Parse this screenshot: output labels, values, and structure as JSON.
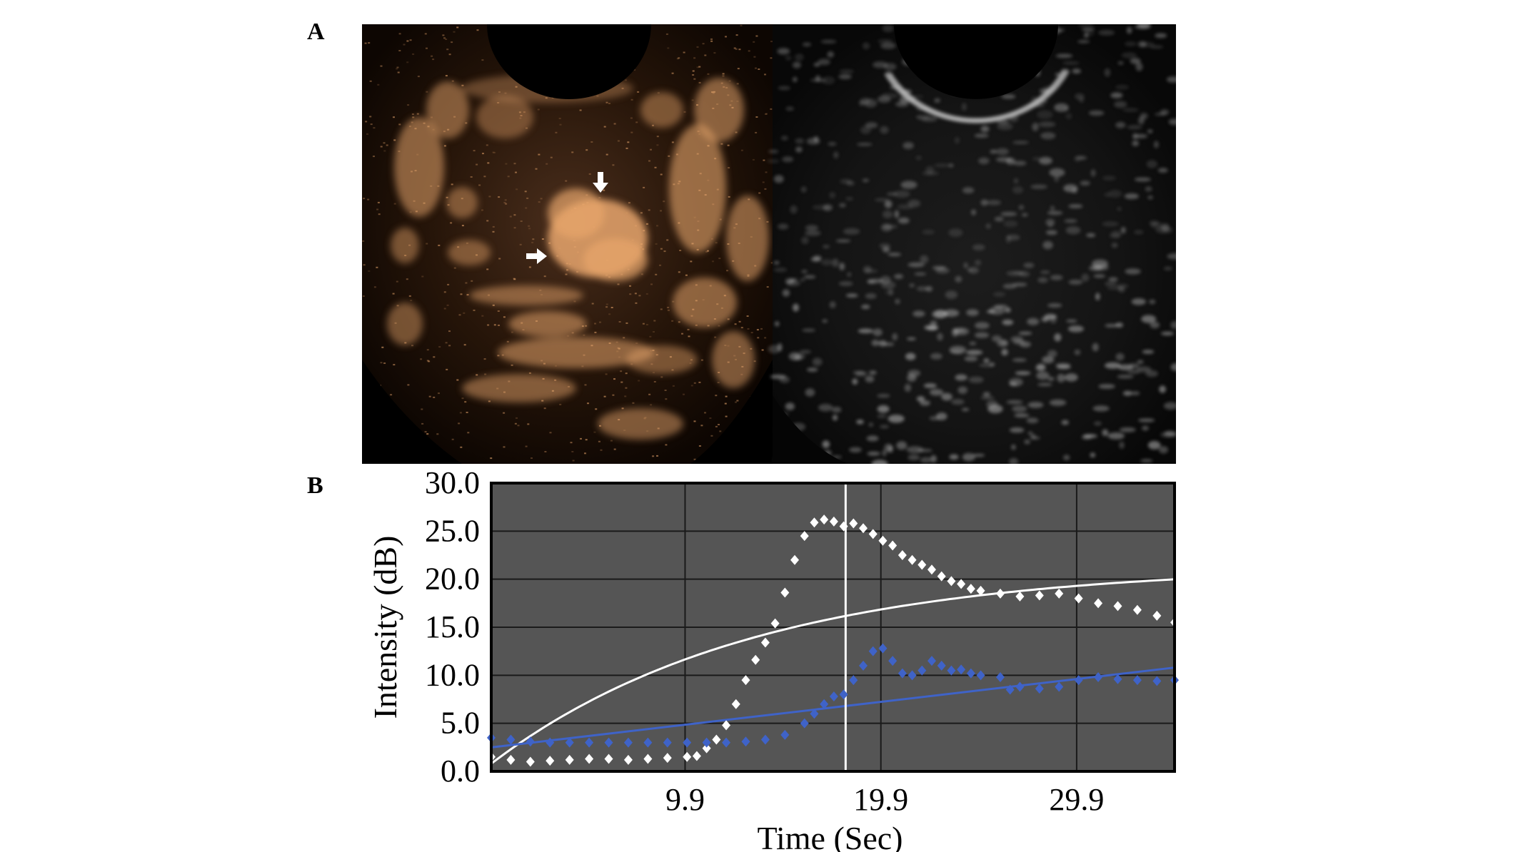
{
  "figure": {
    "panel_a_label": "A",
    "panel_b_label": "B"
  },
  "colors": {
    "plot_background": "#555555",
    "gridline": "#1a1a1a",
    "roi_series": "#ffffff",
    "reference_series": "#3f63c8",
    "marker_line": "#ffffff",
    "contrast_tint": "#e8a66c"
  },
  "ultrasound": {
    "left_panel": "contrast-enhanced mode (warm palette)",
    "right_panel": "B-mode (grayscale)",
    "arrows": [
      "down-arrow-icon",
      "right-arrow-icon"
    ]
  },
  "chart_data": {
    "type": "scatter",
    "xlabel": "Time (Sec)",
    "ylabel": "Intensity (dB)",
    "xlim": [
      0,
      34.9
    ],
    "ylim": [
      0,
      30
    ],
    "x_ticks": [
      9.9,
      19.9,
      29.9
    ],
    "x_tick_labels": [
      "9.9",
      "19.9",
      "29.9"
    ],
    "y_ticks": [
      0,
      5,
      10,
      15,
      20,
      25,
      30
    ],
    "y_tick_labels": [
      "0.0",
      "5.0",
      "10.0",
      "15.0",
      "20.0",
      "25.0",
      "30.0"
    ],
    "grid": true,
    "vertical_marker_x": 18.1,
    "series": [
      {
        "color": "#ffffff",
        "points": [
          [
            0,
            1.5
          ],
          [
            1,
            1.2
          ],
          [
            2,
            1.0
          ],
          [
            3,
            1.1
          ],
          [
            4,
            1.2
          ],
          [
            5,
            1.3
          ],
          [
            6,
            1.3
          ],
          [
            7,
            1.2
          ],
          [
            8,
            1.3
          ],
          [
            9,
            1.4
          ],
          [
            10,
            1.5
          ],
          [
            10.5,
            1.6
          ],
          [
            11,
            2.4
          ],
          [
            11.5,
            3.3
          ],
          [
            12,
            4.8
          ],
          [
            12.5,
            7.0
          ],
          [
            13,
            9.5
          ],
          [
            13.5,
            11.6
          ],
          [
            14,
            13.4
          ],
          [
            14.5,
            15.4
          ],
          [
            15,
            18.6
          ],
          [
            15.5,
            22.0
          ],
          [
            16,
            24.5
          ],
          [
            16.5,
            25.9
          ],
          [
            17,
            26.2
          ],
          [
            17.5,
            26.0
          ],
          [
            18,
            25.5
          ],
          [
            18.5,
            25.8
          ],
          [
            19,
            25.3
          ],
          [
            19.5,
            24.7
          ],
          [
            20,
            24.0
          ],
          [
            20.5,
            23.5
          ],
          [
            21,
            22.5
          ],
          [
            21.5,
            22.0
          ],
          [
            22,
            21.5
          ],
          [
            22.5,
            21.0
          ],
          [
            23,
            20.3
          ],
          [
            23.5,
            19.8
          ],
          [
            24,
            19.5
          ],
          [
            24.5,
            19.0
          ],
          [
            25,
            18.8
          ],
          [
            26,
            18.5
          ],
          [
            27,
            18.2
          ],
          [
            28,
            18.3
          ],
          [
            29,
            18.5
          ],
          [
            30,
            18.0
          ],
          [
            31,
            17.5
          ],
          [
            32,
            17.2
          ],
          [
            33,
            16.8
          ],
          [
            34,
            16.2
          ],
          [
            34.9,
            15.5
          ]
        ]
      },
      {
        "color": "#3f63c8",
        "points": [
          [
            0,
            3.5
          ],
          [
            1,
            3.3
          ],
          [
            2,
            3.1
          ],
          [
            3,
            3.0
          ],
          [
            4,
            3.0
          ],
          [
            5,
            3.0
          ],
          [
            6,
            3.0
          ],
          [
            7,
            3.0
          ],
          [
            8,
            3.0
          ],
          [
            9,
            3.0
          ],
          [
            10,
            3.0
          ],
          [
            11,
            3.0
          ],
          [
            12,
            3.0
          ],
          [
            13,
            3.1
          ],
          [
            14,
            3.3
          ],
          [
            15,
            3.8
          ],
          [
            16,
            5.0
          ],
          [
            16.5,
            6.0
          ],
          [
            17,
            7.0
          ],
          [
            17.5,
            7.8
          ],
          [
            18,
            8.0
          ],
          [
            18.5,
            9.5
          ],
          [
            19,
            11.0
          ],
          [
            19.5,
            12.5
          ],
          [
            20,
            12.8
          ],
          [
            20.5,
            11.5
          ],
          [
            21,
            10.2
          ],
          [
            21.5,
            10.0
          ],
          [
            22,
            10.5
          ],
          [
            22.5,
            11.5
          ],
          [
            23,
            11.0
          ],
          [
            23.5,
            10.5
          ],
          [
            24,
            10.6
          ],
          [
            24.5,
            10.2
          ],
          [
            25,
            10.0
          ],
          [
            26,
            9.8
          ],
          [
            26.5,
            8.5
          ],
          [
            27,
            8.8
          ],
          [
            28,
            8.6
          ],
          [
            29,
            8.8
          ],
          [
            30,
            9.5
          ],
          [
            31,
            9.8
          ],
          [
            32,
            9.6
          ],
          [
            33,
            9.5
          ],
          [
            34,
            9.4
          ],
          [
            34.9,
            9.5
          ]
        ]
      }
    ],
    "fit_lines": [
      {
        "color": "#ffffff",
        "function": "saturating",
        "A": 21.5,
        "B": 20.7,
        "k": 0.075,
        "description": "fit to white series"
      },
      {
        "color": "#3f63c8",
        "function": "linear",
        "start": [
          0,
          2.5
        ],
        "end": [
          34.9,
          10.8
        ],
        "description": "fit to blue series"
      }
    ]
  }
}
